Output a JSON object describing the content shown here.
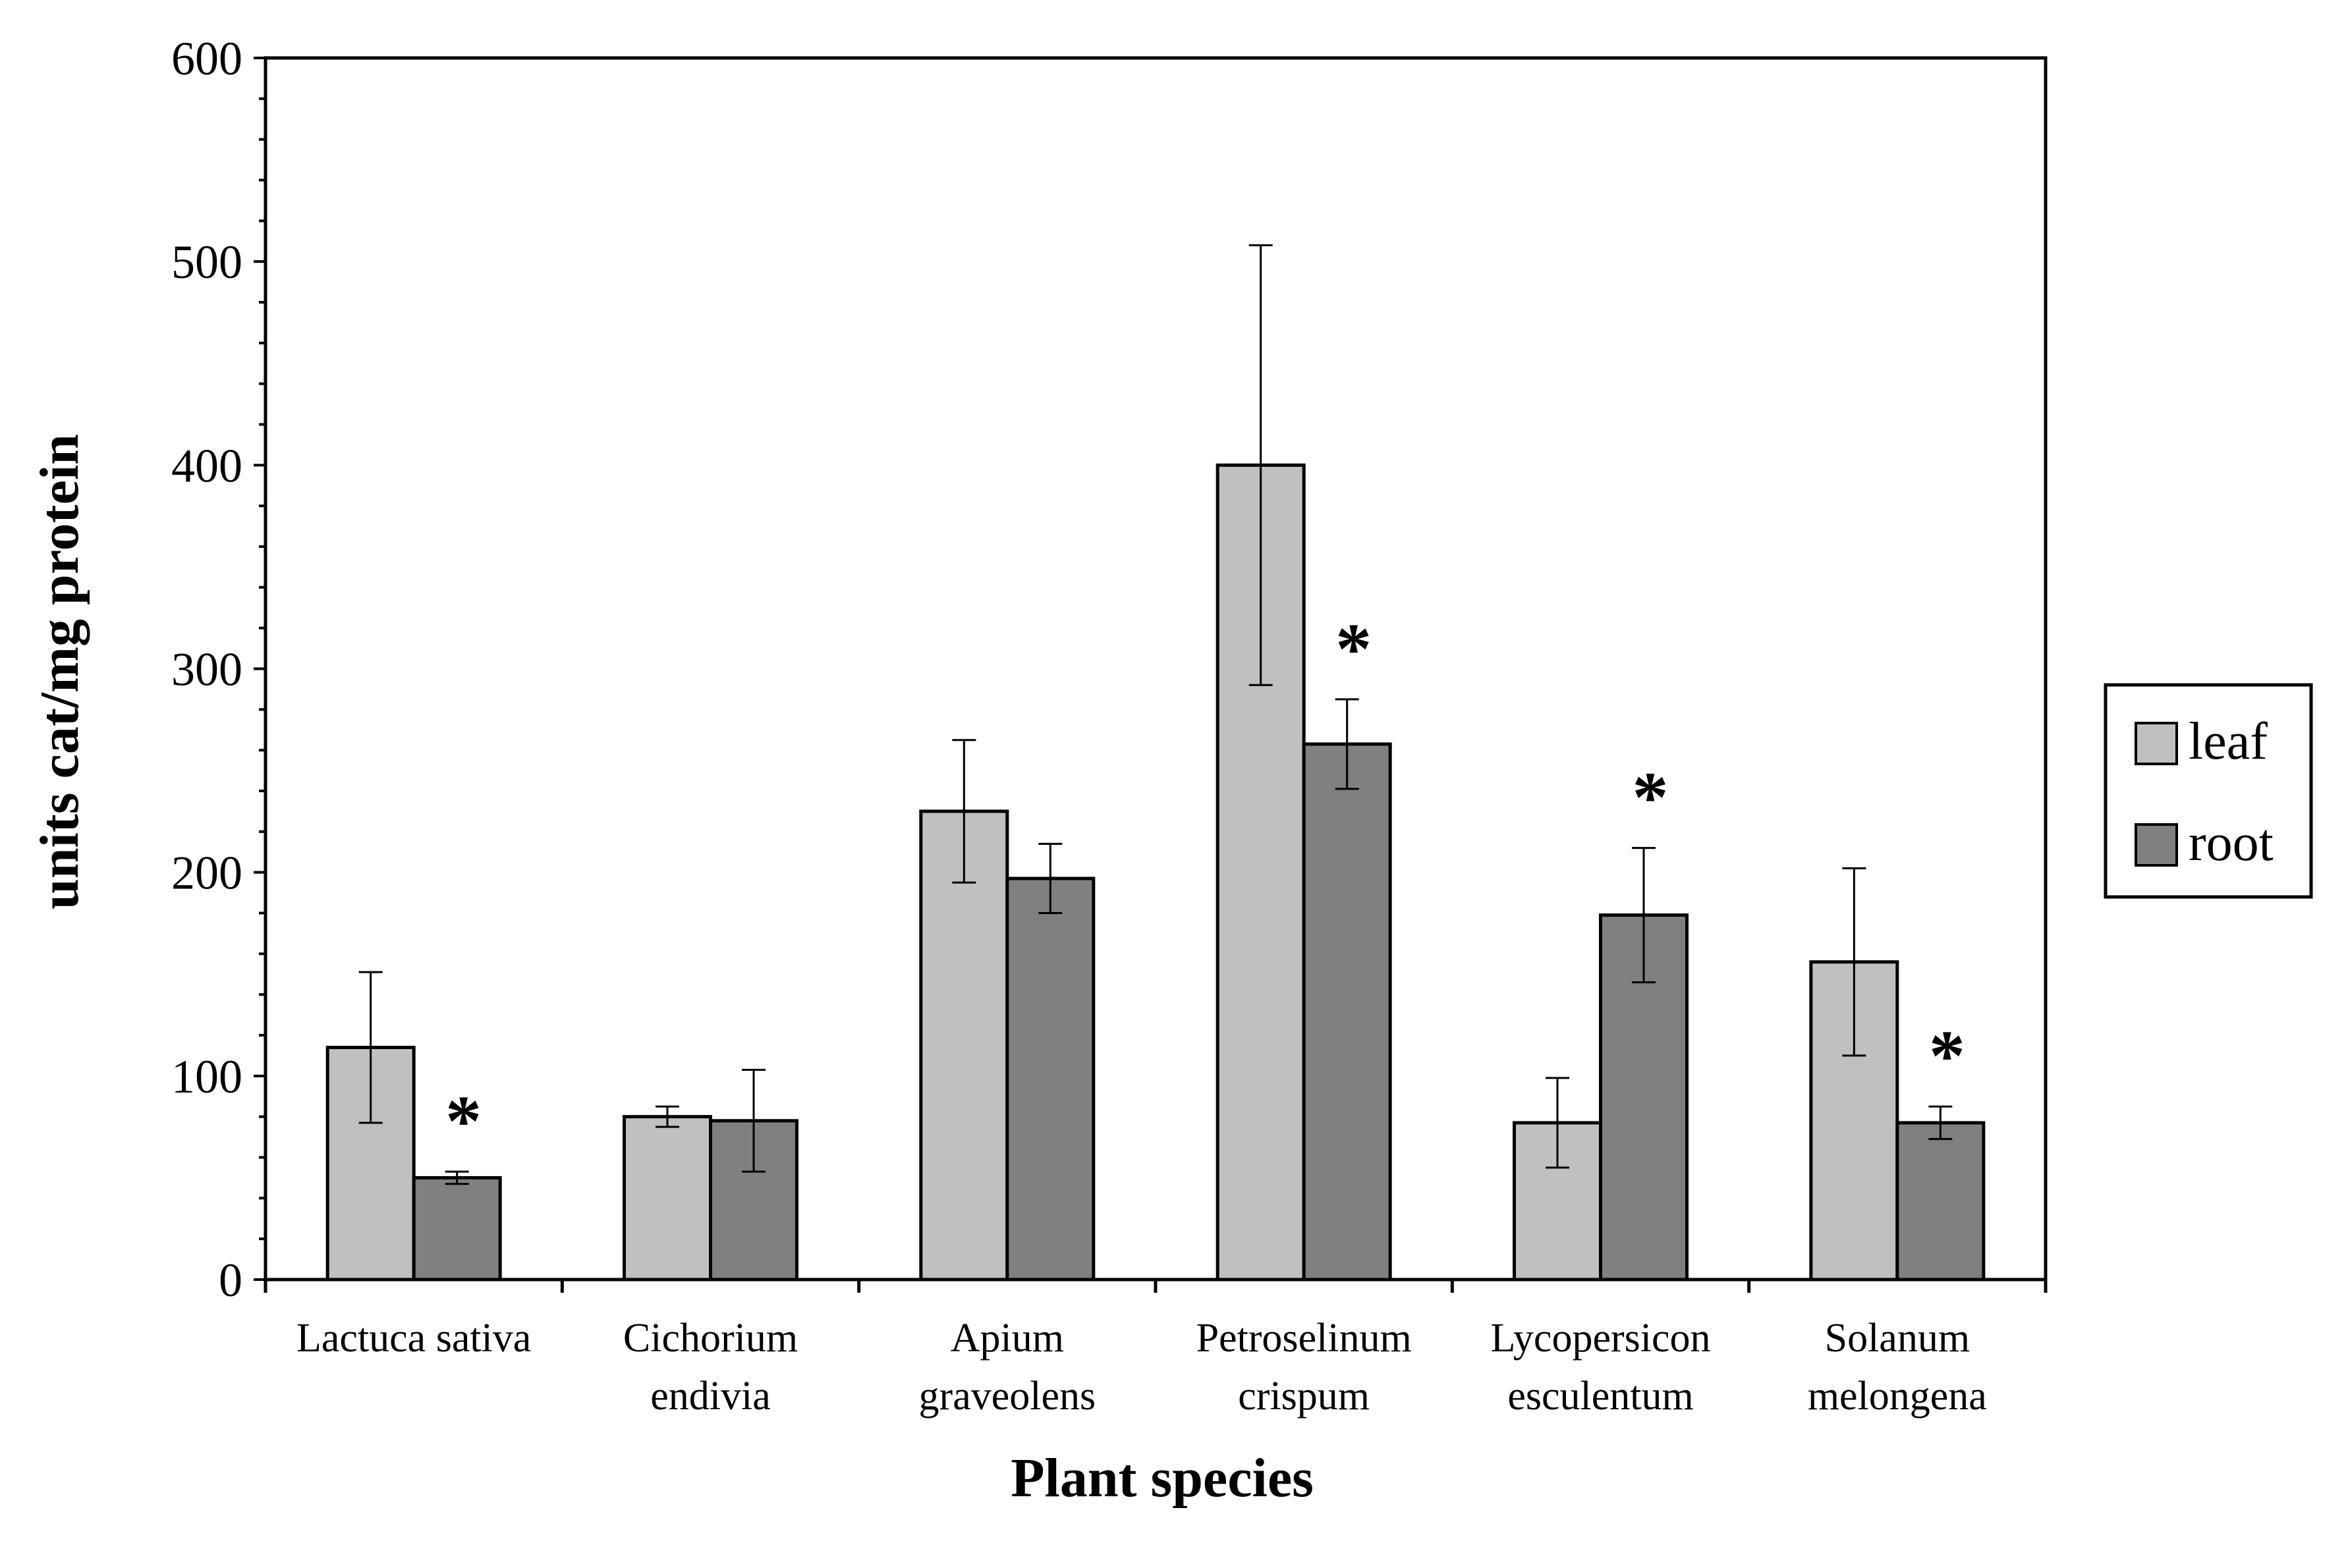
{
  "chart_data": {
    "type": "bar",
    "title": "",
    "xlabel": "Plant species",
    "ylabel": "units cat/mg protein",
    "ylim": [
      0,
      600
    ],
    "ytick_step": 100,
    "grid": false,
    "legend_position": "right",
    "categories": [
      [
        "Lactuca sativa"
      ],
      [
        "Cichorium",
        "endivia"
      ],
      [
        "Apium",
        "graveolens"
      ],
      [
        "Petroselinum",
        "crispum"
      ],
      [
        "Lycopersicon",
        "esculentum"
      ],
      [
        "Solanum",
        "melongena"
      ]
    ],
    "series": [
      {
        "name": "leaf",
        "color": "#c0c0c0",
        "values": [
          114,
          80,
          230,
          400,
          77,
          156
        ],
        "errors": [
          37,
          5,
          35,
          108,
          22,
          46
        ]
      },
      {
        "name": "root",
        "color": "#808080",
        "values": [
          50,
          78,
          197,
          263,
          179,
          77
        ],
        "errors": [
          3,
          25,
          17,
          22,
          33,
          8
        ]
      }
    ],
    "significance_marker": "*",
    "significant_root": [
      true,
      false,
      false,
      true,
      true,
      true
    ]
  }
}
